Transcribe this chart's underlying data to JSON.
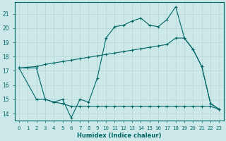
{
  "xlabel": "Humidex (Indice chaleur)",
  "bg_color": "#cce8e8",
  "grid_color": "#aacccc",
  "line_color": "#006666",
  "xlim": [
    -0.5,
    23.5
  ],
  "ylim": [
    13.5,
    21.8
  ],
  "xticks": [
    0,
    1,
    2,
    3,
    4,
    5,
    6,
    7,
    8,
    9,
    10,
    11,
    12,
    13,
    14,
    15,
    16,
    17,
    18,
    19,
    20,
    21,
    22,
    23
  ],
  "yticks": [
    14,
    15,
    16,
    17,
    18,
    19,
    20,
    21
  ],
  "line1_x": [
    0,
    1,
    2,
    3,
    4,
    5,
    6,
    7,
    8,
    9,
    10,
    11,
    12,
    13,
    14,
    15,
    16,
    17,
    18,
    19,
    20,
    21,
    22,
    23
  ],
  "line1_y": [
    17.2,
    17.2,
    17.2,
    15.0,
    14.8,
    15.0,
    13.7,
    15.0,
    14.8,
    16.5,
    19.3,
    20.1,
    20.2,
    20.5,
    20.7,
    20.2,
    20.1,
    20.6,
    21.5,
    19.3,
    18.5,
    17.3,
    14.7,
    14.3
  ],
  "line2_x": [
    0,
    2,
    3,
    4,
    5,
    6,
    7,
    8,
    9,
    10,
    11,
    12,
    13,
    14,
    15,
    16,
    17,
    18,
    19,
    20,
    21,
    22,
    23
  ],
  "line2_y": [
    17.2,
    17.3,
    17.45,
    17.55,
    17.65,
    17.75,
    17.85,
    17.95,
    18.05,
    18.15,
    18.25,
    18.35,
    18.45,
    18.55,
    18.65,
    18.75,
    18.85,
    19.3,
    19.3,
    18.5,
    17.3,
    14.7,
    14.3
  ],
  "line3_x": [
    0,
    2,
    3,
    4,
    5,
    6,
    7,
    8,
    9,
    10,
    11,
    12,
    13,
    14,
    15,
    16,
    17,
    18,
    19,
    20,
    21,
    22,
    23
  ],
  "line3_y": [
    17.2,
    15.0,
    15.0,
    14.8,
    14.7,
    14.5,
    14.5,
    14.5,
    14.5,
    14.5,
    14.5,
    14.5,
    14.5,
    14.5,
    14.5,
    14.5,
    14.5,
    14.5,
    14.5,
    14.5,
    14.5,
    14.5,
    14.3
  ]
}
